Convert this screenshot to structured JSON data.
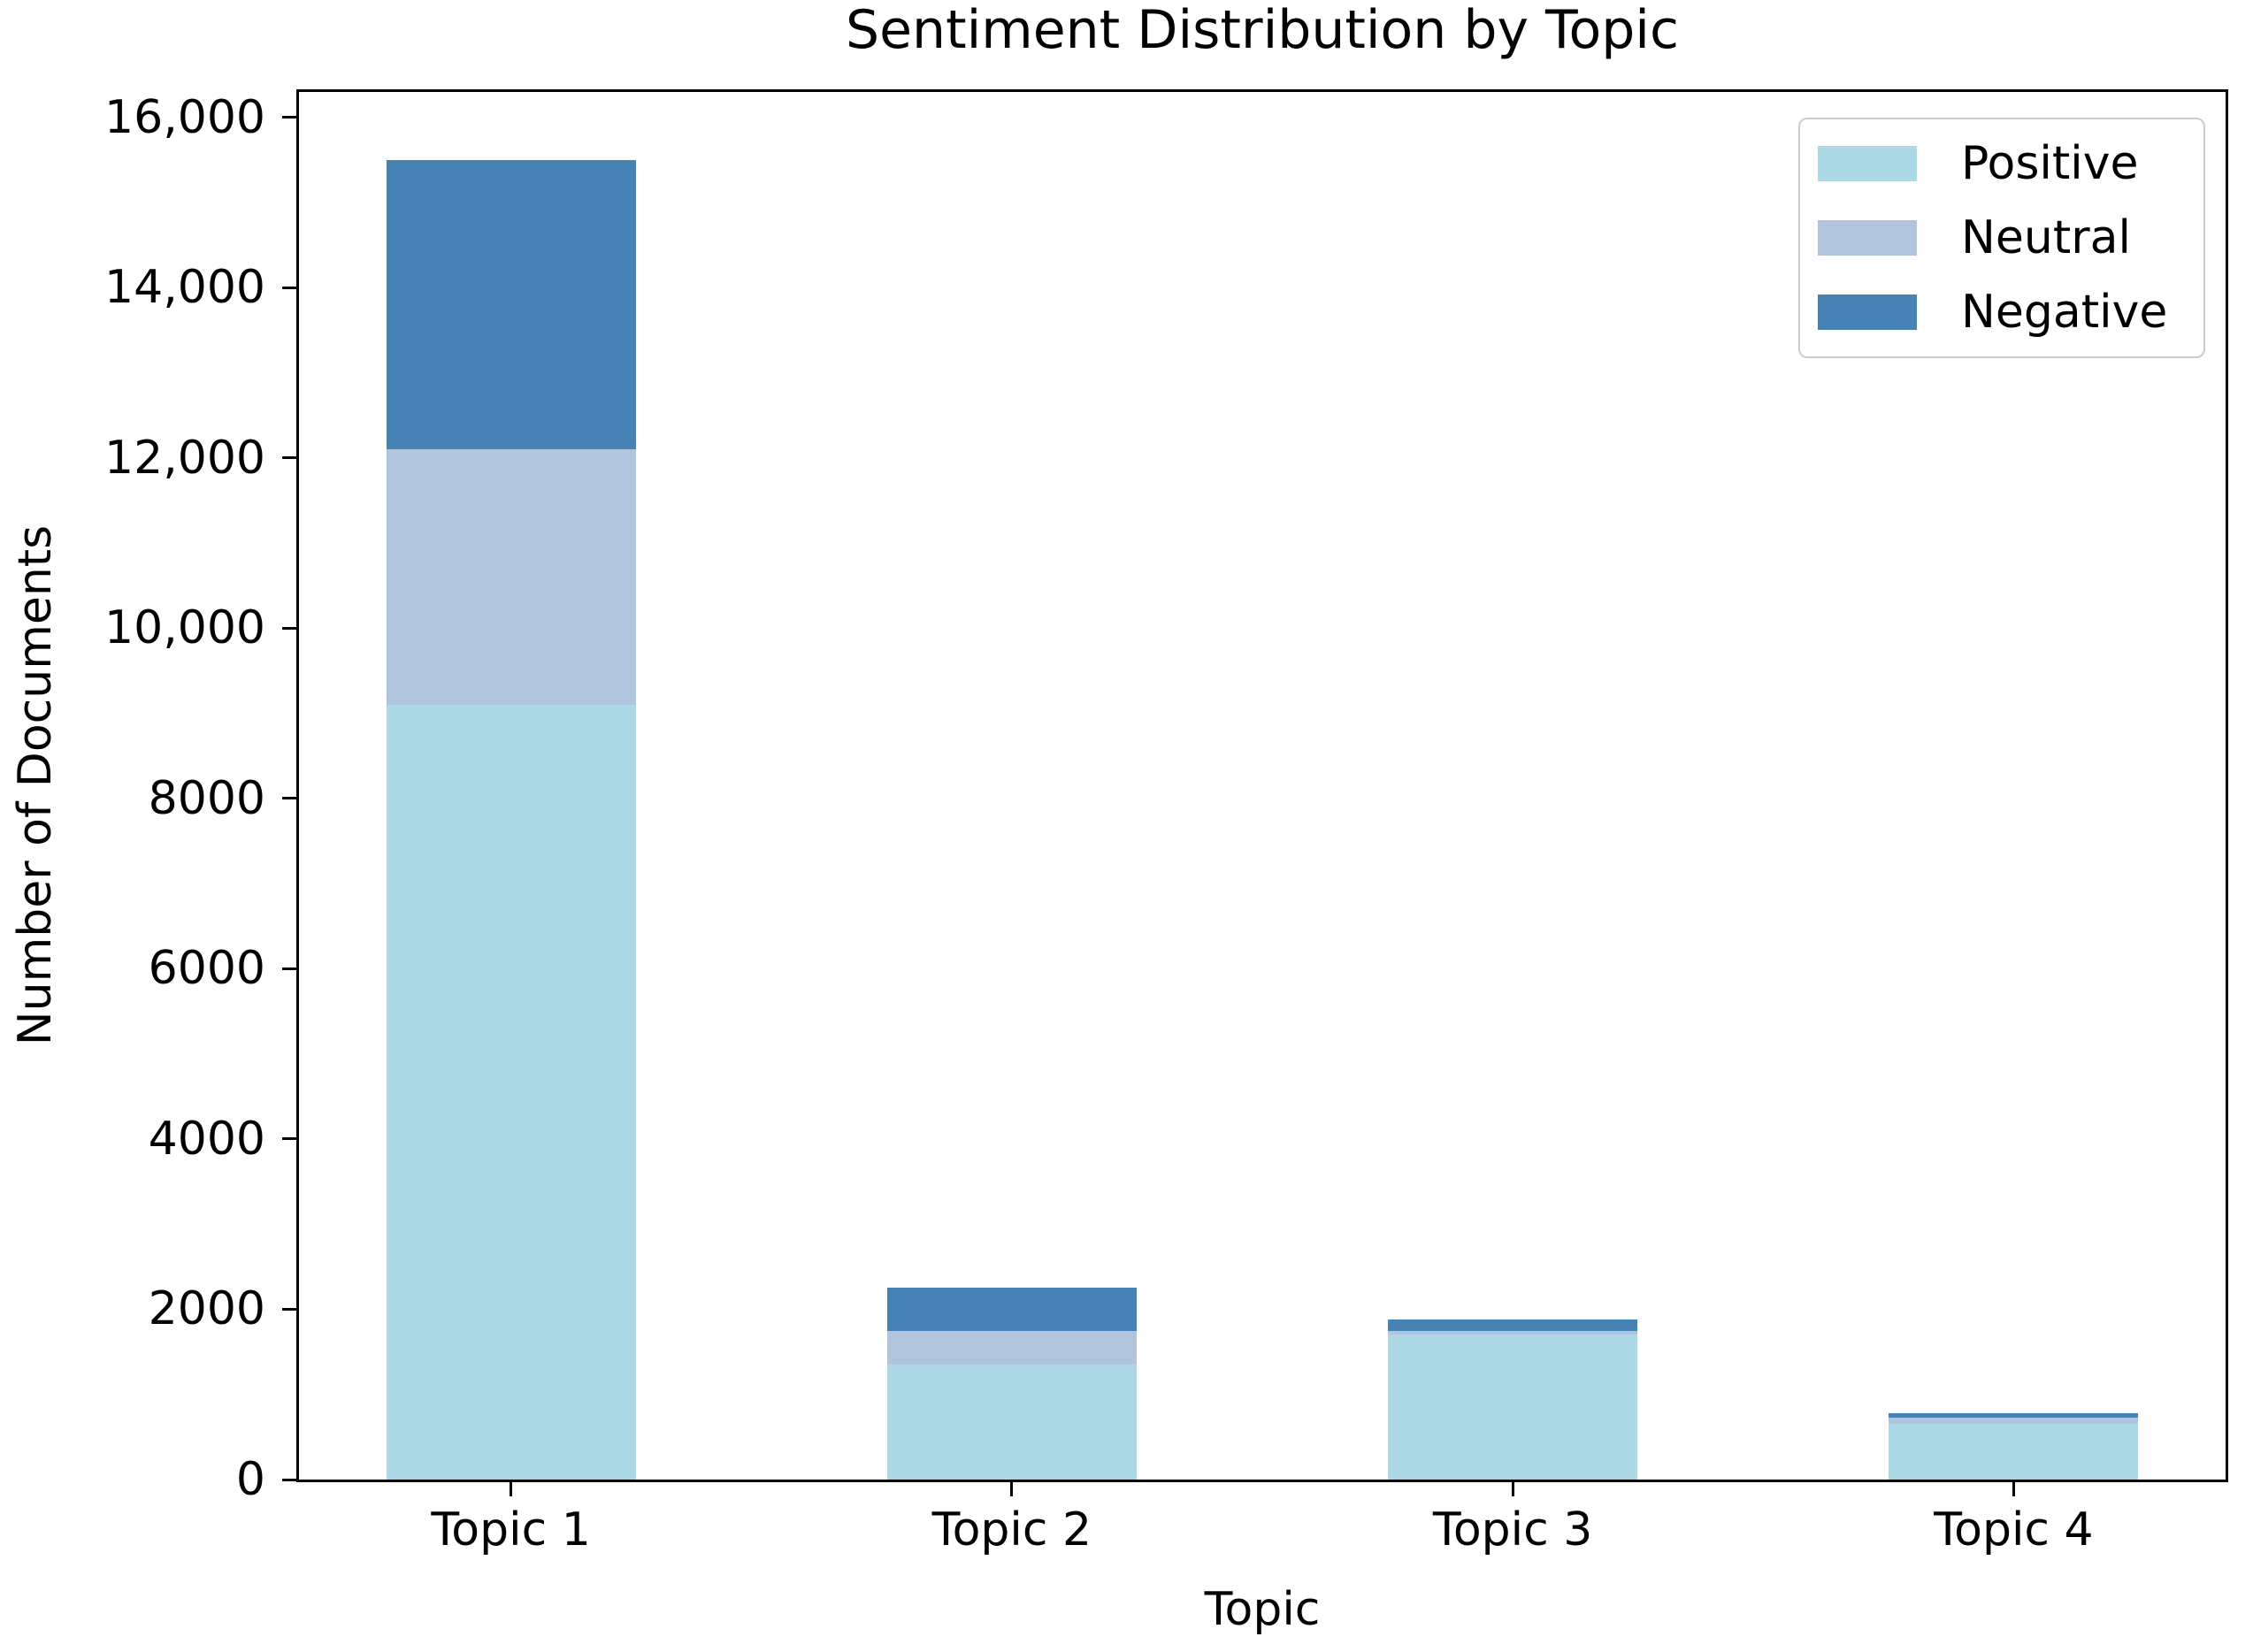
{
  "figure": {
    "background": "#FFFFFF"
  },
  "chart_data": {
    "type": "bar",
    "stacked": true,
    "title": "Sentiment Distribution by Topic",
    "xlabel": "Topic",
    "ylabel": "Number of Documents",
    "categories": [
      "Topic 1",
      "Topic 2",
      "Topic 3",
      "Topic 4"
    ],
    "series": [
      {
        "name": "Positive",
        "color": "#ADD8E6",
        "values": [
          9100,
          1350,
          1700,
          650
        ]
      },
      {
        "name": "Neutral",
        "color": "#B0C4DE",
        "values": [
          3000,
          400,
          50,
          80
        ]
      },
      {
        "name": "Negative",
        "color": "#4682B4",
        "values": [
          3400,
          500,
          130,
          50
        ]
      }
    ],
    "totals": [
      15500,
      2250,
      1880,
      780
    ],
    "ylim": [
      0,
      16300
    ],
    "yticks": [
      {
        "value": 0,
        "label": "0"
      },
      {
        "value": 2000,
        "label": "2000"
      },
      {
        "value": 4000,
        "label": "4000"
      },
      {
        "value": 6000,
        "label": "6000"
      },
      {
        "value": 8000,
        "label": "8000"
      },
      {
        "value": 10000,
        "label": "10,000"
      },
      {
        "value": 12000,
        "label": "12,000"
      },
      {
        "value": 14000,
        "label": "14,000"
      },
      {
        "value": 16000,
        "label": "16,000"
      }
    ],
    "legend": {
      "position": "upper right",
      "entries": [
        "Positive",
        "Neutral",
        "Negative"
      ]
    },
    "grid": false,
    "bar_width_fraction": 0.1295,
    "bar_center_fractions": [
      0.11,
      0.37,
      0.63,
      0.89
    ]
  }
}
